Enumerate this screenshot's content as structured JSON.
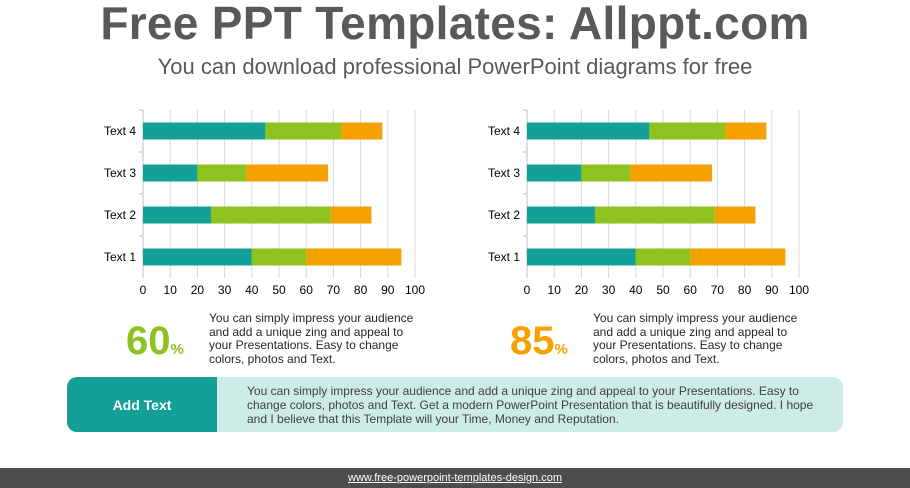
{
  "header": {
    "title": "Free PPT Templates: Allppt.com",
    "subtitle": "You can download professional PowerPoint diagrams for free"
  },
  "colors": {
    "series1": "#14a096",
    "series2": "#8dc21f",
    "series3": "#f5a100",
    "stat_left": "#8dc21f",
    "stat_right": "#f5a100",
    "banner_label_bg": "#14a096",
    "banner_bg": "#cdebe7"
  },
  "chart_data": [
    {
      "type": "bar",
      "orientation": "horizontal",
      "stacked": true,
      "categories": [
        "Text 1",
        "Text 2",
        "Text 3",
        "Text 4"
      ],
      "series": [
        {
          "values": [
            40,
            25,
            20,
            45
          ]
        },
        {
          "values": [
            20,
            44,
            18,
            28
          ]
        },
        {
          "values": [
            35,
            15,
            30,
            15
          ]
        }
      ],
      "xlim": [
        0,
        100
      ],
      "xticks": [
        "0",
        "10",
        "20",
        "30",
        "40",
        "50",
        "60",
        "70",
        "80",
        "90",
        "100"
      ],
      "grid": true
    },
    {
      "type": "bar",
      "orientation": "horizontal",
      "stacked": true,
      "categories": [
        "Text 1",
        "Text 2",
        "Text 3",
        "Text 4"
      ],
      "series": [
        {
          "values": [
            40,
            25,
            20,
            45
          ]
        },
        {
          "values": [
            20,
            44,
            18,
            28
          ]
        },
        {
          "values": [
            35,
            15,
            30,
            15
          ]
        }
      ],
      "xlim": [
        0,
        100
      ],
      "xticks": [
        "0",
        "10",
        "20",
        "30",
        "40",
        "50",
        "60",
        "70",
        "80",
        "90",
        "100"
      ],
      "grid": true
    }
  ],
  "stats": [
    {
      "value": "60",
      "unit": "%",
      "description": "You can simply impress your audience and add a unique zing and appeal to your Presentations. Easy to change colors, photos and Text."
    },
    {
      "value": "85",
      "unit": "%",
      "description": "You can simply impress your audience and add a unique zing and appeal to your Presentations. Easy to change colors, photos and Text."
    }
  ],
  "banner": {
    "label": "Add Text",
    "text": "You can simply impress your audience and add a unique zing and appeal to your Presentations. Easy to change colors, photos and Text. Get a modern PowerPoint  Presentation that is beautifully designed. I hope and I believe that this Template will your Time, Money and Reputation."
  },
  "footer": {
    "link": "www.free-powerpoint-templates-design.com"
  }
}
